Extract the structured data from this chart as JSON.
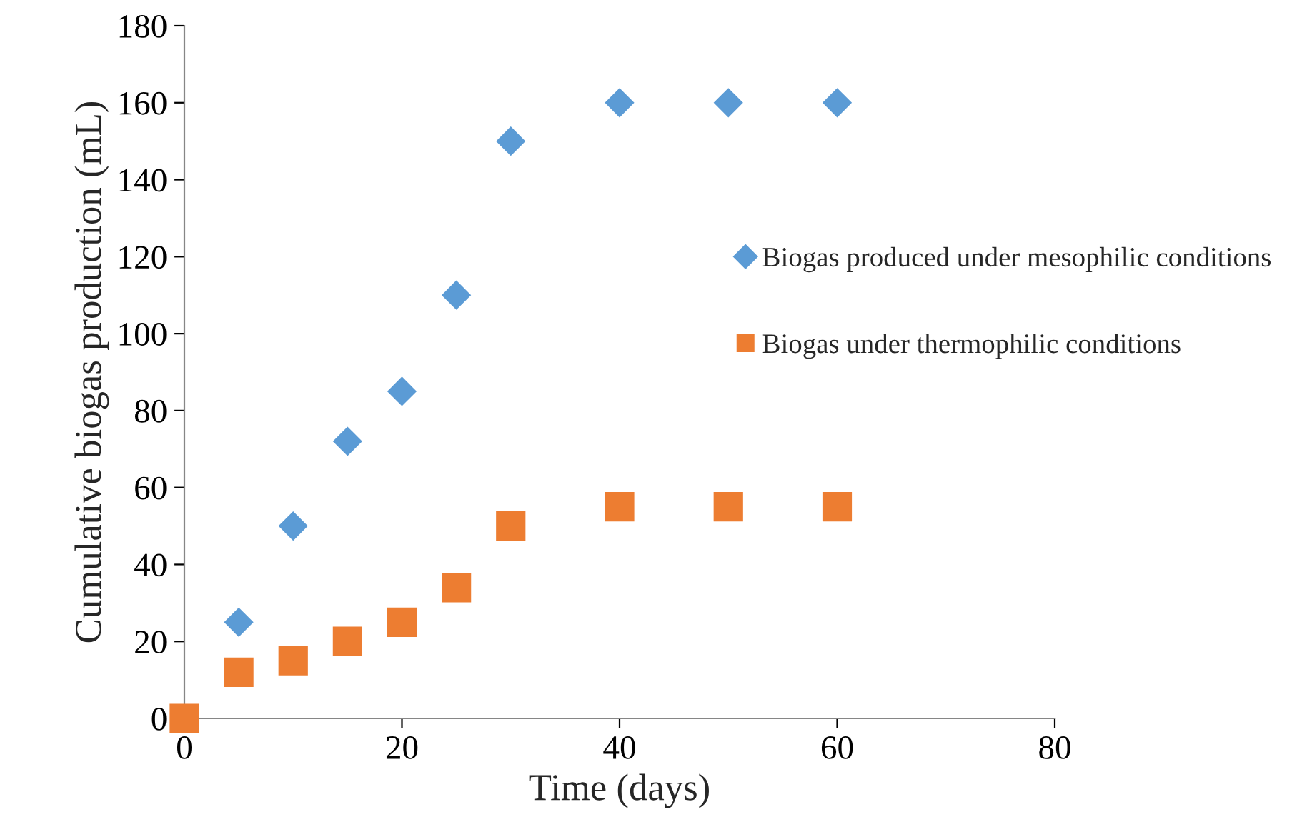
{
  "chart_data": {
    "type": "scatter",
    "xlabel": "Time (days)",
    "ylabel": "Cumulative biogas production (mL)",
    "series": [
      {
        "name": "Biogas produced under mesophilic conditions",
        "color": "#5b9bd5",
        "marker": "diamond",
        "x": [
          5,
          10,
          15,
          20,
          25,
          30,
          40,
          50,
          60
        ],
        "values": [
          25,
          50,
          72,
          85,
          110,
          150,
          160,
          160,
          160
        ]
      },
      {
        "name": "Biogas under thermophilic conditions",
        "color": "#ed7d31",
        "marker": "square",
        "x": [
          0,
          5,
          10,
          15,
          20,
          25,
          30,
          40,
          50,
          60
        ],
        "values": [
          0,
          12,
          15,
          20,
          25,
          34,
          50,
          55,
          55,
          55
        ]
      }
    ],
    "xlim": [
      0,
      80
    ],
    "xticks": [
      0,
      20,
      40,
      60,
      80
    ],
    "ylim": [
      0,
      180
    ],
    "yticks": [
      0,
      20,
      40,
      60,
      80,
      100,
      120,
      140,
      160,
      180
    ],
    "grid": false,
    "legend": "right"
  }
}
